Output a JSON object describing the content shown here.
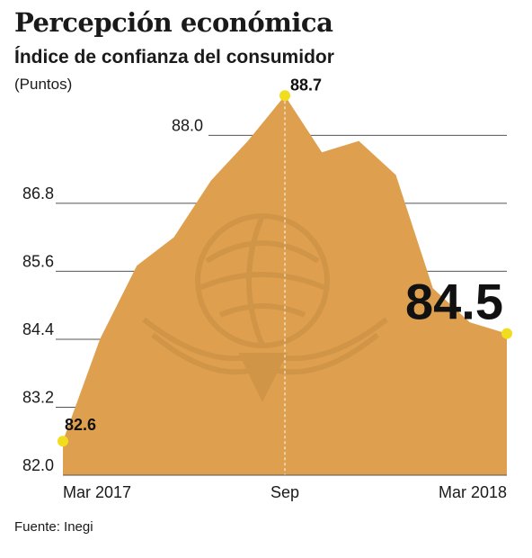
{
  "title": "Percepción económica",
  "subtitle": "Índice de confianza del consumidor",
  "units": "(Puntos)",
  "source": "Fuente: Inegi",
  "colors": {
    "area": "#dea04f",
    "marker": "#f2dc1e",
    "grid": "#555555"
  },
  "chart_data": {
    "type": "area",
    "ylim": [
      82.0,
      88.8
    ],
    "yticks": [
      "82.0",
      "83.2",
      "84.4",
      "85.6",
      "86.8",
      "88.0"
    ],
    "xtick_labels": [
      "Mar 2017",
      "Sep",
      "Mar 2018"
    ],
    "x": [
      "Mar 2017",
      "Apr 2017",
      "May 2017",
      "Jun 2017",
      "Jul 2017",
      "Aug 2017",
      "Sep 2017",
      "Oct 2017",
      "Nov 2017",
      "Dec 2017",
      "Jan 2018",
      "Feb 2018",
      "Mar 2018"
    ],
    "values": [
      82.6,
      84.4,
      85.7,
      86.2,
      87.2,
      87.9,
      88.7,
      87.7,
      87.9,
      87.3,
      85.3,
      84.7,
      84.5
    ],
    "labels": {
      "first": "82.6",
      "peak": "88.7",
      "last": "84.5"
    },
    "grid": true
  }
}
